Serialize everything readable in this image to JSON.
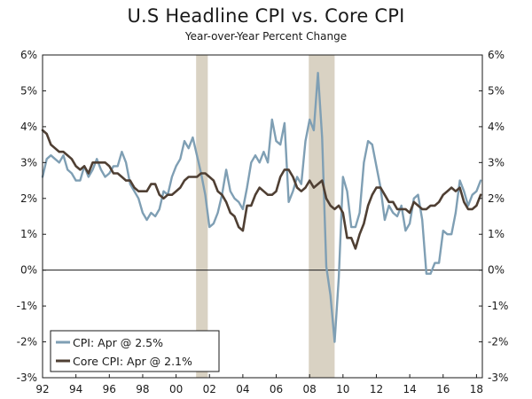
{
  "chart_data": {
    "type": "line",
    "title": "U.S Headline CPI vs. Core CPI",
    "subtitle": "Year-over-Year Percent Change",
    "xlabel": "",
    "ylabel": "",
    "xlim": [
      1992,
      2018.35
    ],
    "ylim": [
      -3,
      6
    ],
    "x_ticks": [
      {
        "value": 1992,
        "label": "92"
      },
      {
        "value": 1994,
        "label": "94"
      },
      {
        "value": 1996,
        "label": "96"
      },
      {
        "value": 1998,
        "label": "98"
      },
      {
        "value": 2000,
        "label": "00"
      },
      {
        "value": 2002,
        "label": "02"
      },
      {
        "value": 2004,
        "label": "04"
      },
      {
        "value": 2006,
        "label": "06"
      },
      {
        "value": 2008,
        "label": "08"
      },
      {
        "value": 2010,
        "label": "10"
      },
      {
        "value": 2012,
        "label": "12"
      },
      {
        "value": 2014,
        "label": "14"
      },
      {
        "value": 2016,
        "label": "16"
      },
      {
        "value": 2018,
        "label": "18"
      }
    ],
    "y_ticks": [
      {
        "value": 6,
        "label": "6%"
      },
      {
        "value": 5,
        "label": "5%"
      },
      {
        "value": 4,
        "label": "4%"
      },
      {
        "value": 3,
        "label": "3%"
      },
      {
        "value": 2,
        "label": "2%"
      },
      {
        "value": 1,
        "label": "1%"
      },
      {
        "value": 0,
        "label": "0%"
      },
      {
        "value": -1,
        "label": "-1%"
      },
      {
        "value": -2,
        "label": "-2%"
      },
      {
        "value": -3,
        "label": "-3%"
      }
    ],
    "recessions": [
      [
        2001.2,
        2001.9
      ],
      [
        2007.95,
        2009.5
      ]
    ],
    "grid": false,
    "legend_position": "bottom-left",
    "series": [
      {
        "name": "CPI: Apr @ 2.5%",
        "color": "#7f9fb4",
        "x": [
          1992.0,
          1992.25,
          1992.5,
          1992.75,
          1993.0,
          1993.25,
          1993.5,
          1993.75,
          1994.0,
          1994.25,
          1994.5,
          1994.75,
          1995.0,
          1995.25,
          1995.5,
          1995.75,
          1996.0,
          1996.25,
          1996.5,
          1996.75,
          1997.0,
          1997.25,
          1997.5,
          1997.75,
          1998.0,
          1998.25,
          1998.5,
          1998.75,
          1999.0,
          1999.25,
          1999.5,
          1999.75,
          2000.0,
          2000.25,
          2000.5,
          2000.75,
          2001.0,
          2001.25,
          2001.5,
          2001.75,
          2002.0,
          2002.25,
          2002.5,
          2002.75,
          2003.0,
          2003.25,
          2003.5,
          2003.75,
          2004.0,
          2004.25,
          2004.5,
          2004.75,
          2005.0,
          2005.25,
          2005.5,
          2005.75,
          2006.0,
          2006.25,
          2006.5,
          2006.75,
          2007.0,
          2007.25,
          2007.5,
          2007.75,
          2008.0,
          2008.25,
          2008.5,
          2008.75,
          2009.0,
          2009.25,
          2009.5,
          2009.75,
          2010.0,
          2010.25,
          2010.5,
          2010.75,
          2011.0,
          2011.25,
          2011.5,
          2011.75,
          2012.0,
          2012.25,
          2012.5,
          2012.75,
          2013.0,
          2013.25,
          2013.5,
          2013.75,
          2014.0,
          2014.25,
          2014.5,
          2014.75,
          2015.0,
          2015.25,
          2015.5,
          2015.75,
          2016.0,
          2016.25,
          2016.5,
          2016.75,
          2017.0,
          2017.25,
          2017.5,
          2017.75,
          2018.0,
          2018.25
        ],
        "values": [
          2.6,
          3.1,
          3.2,
          3.1,
          3.0,
          3.2,
          2.8,
          2.7,
          2.5,
          2.5,
          2.9,
          2.6,
          2.8,
          3.1,
          2.8,
          2.6,
          2.7,
          2.9,
          2.9,
          3.3,
          3.0,
          2.4,
          2.2,
          2.0,
          1.6,
          1.4,
          1.6,
          1.5,
          1.7,
          2.2,
          2.1,
          2.6,
          2.9,
          3.1,
          3.6,
          3.4,
          3.7,
          3.2,
          2.7,
          2.1,
          1.2,
          1.3,
          1.6,
          2.1,
          2.8,
          2.2,
          2.0,
          1.9,
          1.7,
          2.3,
          3.0,
          3.2,
          3.0,
          3.3,
          3.0,
          4.2,
          3.6,
          3.5,
          4.1,
          1.9,
          2.2,
          2.6,
          2.4,
          3.6,
          4.2,
          3.9,
          5.5,
          3.7,
          0.1,
          -0.7,
          -2.0,
          -0.2,
          2.6,
          2.2,
          1.2,
          1.2,
          1.6,
          3.0,
          3.6,
          3.5,
          2.9,
          2.3,
          1.4,
          1.8,
          1.6,
          1.5,
          1.8,
          1.1,
          1.3,
          2.0,
          2.1,
          1.4,
          -0.1,
          -0.1,
          0.2,
          0.2,
          1.1,
          1.0,
          1.0,
          1.6,
          2.5,
          2.2,
          1.8,
          2.1,
          2.2,
          2.5
        ]
      },
      {
        "name": "Core CPI: Apr @ 2.1%",
        "color": "#4f3f33",
        "x": [
          1992.0,
          1992.25,
          1992.5,
          1992.75,
          1993.0,
          1993.25,
          1993.5,
          1993.75,
          1994.0,
          1994.25,
          1994.5,
          1994.75,
          1995.0,
          1995.25,
          1995.5,
          1995.75,
          1996.0,
          1996.25,
          1996.5,
          1996.75,
          1997.0,
          1997.25,
          1997.5,
          1997.75,
          1998.0,
          1998.25,
          1998.5,
          1998.75,
          1999.0,
          1999.25,
          1999.5,
          1999.75,
          2000.0,
          2000.25,
          2000.5,
          2000.75,
          2001.0,
          2001.25,
          2001.5,
          2001.75,
          2002.0,
          2002.25,
          2002.5,
          2002.75,
          2003.0,
          2003.25,
          2003.5,
          2003.75,
          2004.0,
          2004.25,
          2004.5,
          2004.75,
          2005.0,
          2005.25,
          2005.5,
          2005.75,
          2006.0,
          2006.25,
          2006.5,
          2006.75,
          2007.0,
          2007.25,
          2007.5,
          2007.75,
          2008.0,
          2008.25,
          2008.5,
          2008.75,
          2009.0,
          2009.25,
          2009.5,
          2009.75,
          2010.0,
          2010.25,
          2010.5,
          2010.75,
          2011.0,
          2011.25,
          2011.5,
          2011.75,
          2012.0,
          2012.25,
          2012.5,
          2012.75,
          2013.0,
          2013.25,
          2013.5,
          2013.75,
          2014.0,
          2014.25,
          2014.5,
          2014.75,
          2015.0,
          2015.25,
          2015.5,
          2015.75,
          2016.0,
          2016.25,
          2016.5,
          2016.75,
          2017.0,
          2017.25,
          2017.5,
          2017.75,
          2018.0,
          2018.25
        ],
        "values": [
          3.9,
          3.8,
          3.5,
          3.4,
          3.3,
          3.3,
          3.2,
          3.1,
          2.9,
          2.8,
          2.9,
          2.7,
          3.0,
          3.0,
          3.0,
          3.0,
          2.9,
          2.7,
          2.7,
          2.6,
          2.5,
          2.5,
          2.3,
          2.2,
          2.2,
          2.2,
          2.4,
          2.4,
          2.1,
          2.0,
          2.1,
          2.1,
          2.2,
          2.3,
          2.5,
          2.6,
          2.6,
          2.6,
          2.7,
          2.7,
          2.6,
          2.5,
          2.2,
          2.1,
          1.9,
          1.6,
          1.5,
          1.2,
          1.1,
          1.8,
          1.8,
          2.1,
          2.3,
          2.2,
          2.1,
          2.1,
          2.2,
          2.6,
          2.8,
          2.8,
          2.6,
          2.3,
          2.2,
          2.3,
          2.5,
          2.3,
          2.4,
          2.5,
          2.0,
          1.8,
          1.7,
          1.8,
          1.6,
          0.9,
          0.9,
          0.6,
          1.0,
          1.3,
          1.8,
          2.1,
          2.3,
          2.3,
          2.1,
          1.9,
          1.9,
          1.7,
          1.7,
          1.7,
          1.6,
          1.9,
          1.8,
          1.7,
          1.7,
          1.8,
          1.8,
          1.9,
          2.1,
          2.2,
          2.3,
          2.2,
          2.3,
          1.9,
          1.7,
          1.7,
          1.8,
          2.1
        ]
      }
    ]
  }
}
